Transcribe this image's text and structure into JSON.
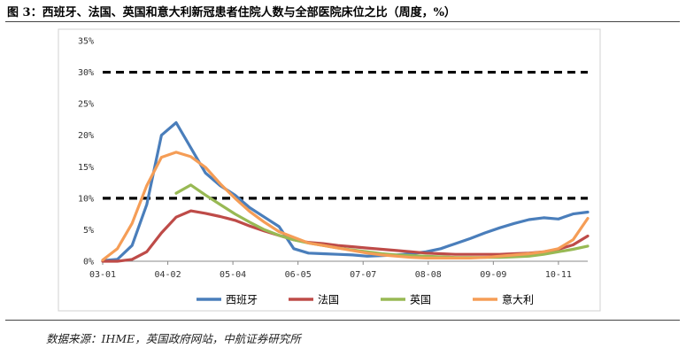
{
  "header": {
    "title": "图 3：西班牙、法国、英国和意大利新冠患者住院人数与全部医院床位之比（周度，%）"
  },
  "footer": {
    "source": "数据来源：IHME，英国政府网站，中航证券研究所"
  },
  "chart_data": {
    "type": "line",
    "title": "图 3：西班牙、法国、英国和意大利新冠患者住院人数与全部医院床位之比（周度，%）",
    "xlabel": "",
    "ylabel": "",
    "ylim": [
      0,
      35
    ],
    "yticks": [
      "0%",
      "5%",
      "10%",
      "15%",
      "20%",
      "25%",
      "30%",
      "35%"
    ],
    "xticks": [
      "03-01",
      "04-02",
      "05-04",
      "06-05",
      "07-07",
      "08-08",
      "09-09",
      "10-11"
    ],
    "x": [
      "03-01",
      "03-08",
      "03-15",
      "03-22",
      "03-29",
      "04-05",
      "04-12",
      "04-19",
      "04-26",
      "05-03",
      "05-10",
      "05-17",
      "05-24",
      "05-31",
      "06-07",
      "06-14",
      "06-21",
      "06-28",
      "07-05",
      "07-12",
      "07-19",
      "07-26",
      "08-02",
      "08-09",
      "08-16",
      "08-23",
      "08-30",
      "09-06",
      "09-13",
      "09-20",
      "09-27",
      "10-04",
      "10-11",
      "10-18"
    ],
    "series": [
      {
        "name": "西班牙",
        "color": "#4a7ebb",
        "values": [
          0.1,
          0.3,
          2.5,
          9,
          20,
          22,
          18,
          14,
          12,
          10.5,
          8.5,
          7,
          5.5,
          2,
          1.3,
          1.2,
          1.1,
          1,
          0.8,
          0.9,
          1,
          1.2,
          1.5,
          2,
          2.8,
          3.6,
          4.5,
          5.3,
          6,
          6.6,
          6.9,
          6.7,
          7.5,
          7.8
        ]
      },
      {
        "name": "法国",
        "color": "#be4b48",
        "values": [
          0,
          0,
          0.3,
          1.5,
          4.5,
          7,
          8,
          7.6,
          7.1,
          6.5,
          5.6,
          4.8,
          4.1,
          3.4,
          3,
          2.8,
          2.5,
          2.3,
          2.1,
          1.9,
          1.7,
          1.5,
          1.3,
          1.2,
          1.1,
          1.1,
          1.1,
          1.1,
          1.2,
          1.3,
          1.5,
          1.9,
          2.6,
          4
        ]
      },
      {
        "name": "英国",
        "color": "#98b954",
        "values": [
          null,
          null,
          null,
          null,
          null,
          10.8,
          12.1,
          10.5,
          9,
          7.5,
          6.2,
          5,
          4.1,
          3.4,
          2.9,
          2.5,
          2.1,
          1.8,
          1.5,
          1.2,
          1,
          0.9,
          0.8,
          0.7,
          0.6,
          0.6,
          0.6,
          0.6,
          0.7,
          0.8,
          1.1,
          1.5,
          1.9,
          2.4
        ]
      },
      {
        "name": "意大利",
        "color": "#f59d56",
        "values": [
          0.2,
          2,
          6,
          12,
          16.5,
          17.3,
          16.6,
          14.9,
          12.3,
          10,
          7.9,
          6.2,
          4.7,
          3.8,
          2.9,
          2.5,
          2.1,
          1.7,
          1.3,
          1,
          0.8,
          0.6,
          0.5,
          0.5,
          0.5,
          0.5,
          0.6,
          0.8,
          1,
          1.2,
          1.5,
          2,
          3.4,
          6.8
        ]
      }
    ],
    "reference_lines": [
      30,
      10
    ],
    "legend_position": "bottom",
    "grid": false
  }
}
